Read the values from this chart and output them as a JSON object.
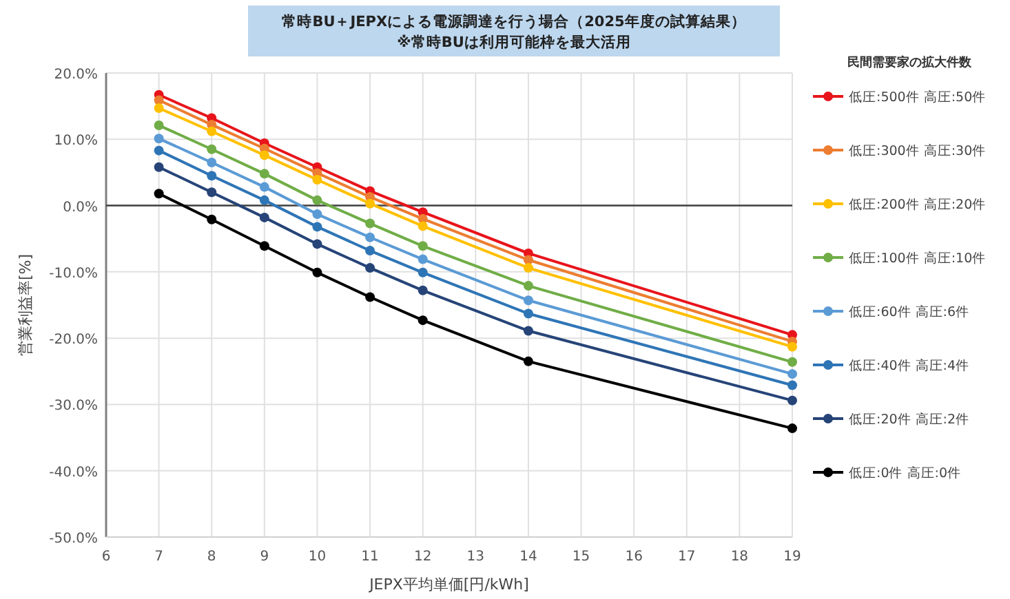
{
  "chart_data": {
    "type": "line",
    "title": "常時BU＋JEPXによる電源調達を行う場合（2025年度の試算結果）",
    "subtitle": "※常時BUは利用可能枠を最大活用",
    "xlabel": "JEPX平均単価[円/kWh]",
    "ylabel": "営業利益率[%]",
    "legend_title": "民間需要家の拡大件数",
    "x": [
      7,
      8,
      9,
      10,
      11,
      12,
      14,
      19
    ],
    "series": [
      {
        "name": "低圧:500件 高圧:50件",
        "color": "#e8141b",
        "values": [
          16.7,
          13.2,
          9.4,
          5.8,
          2.2,
          -1.0,
          -7.2,
          -19.5
        ]
      },
      {
        "name": "低圧:300件 高圧:30件",
        "color": "#ed7d31",
        "values": [
          15.9,
          12.2,
          8.6,
          4.9,
          1.3,
          -2.0,
          -8.2,
          -20.5
        ]
      },
      {
        "name": "低圧:200件 高圧:20件",
        "color": "#ffc000",
        "values": [
          14.7,
          11.2,
          7.6,
          3.9,
          0.3,
          -3.1,
          -9.4,
          -21.3
        ]
      },
      {
        "name": "低圧:100件 高圧:10件",
        "color": "#70ad47",
        "values": [
          12.1,
          8.5,
          4.8,
          0.8,
          -2.7,
          -6.1,
          -12.1,
          -23.6
        ]
      },
      {
        "name": "低圧:60件 高圧:6件",
        "color": "#5b9bd5",
        "values": [
          10.1,
          6.5,
          2.8,
          -1.3,
          -4.8,
          -8.1,
          -14.3,
          -25.4
        ]
      },
      {
        "name": "低圧:40件 高圧:4件",
        "color": "#2e75b6",
        "values": [
          8.3,
          4.5,
          0.8,
          -3.2,
          -6.8,
          -10.1,
          -16.3,
          -27.1
        ]
      },
      {
        "name": "低圧:20件 高圧:2件",
        "color": "#264478",
        "values": [
          5.8,
          2.0,
          -1.8,
          -5.8,
          -9.4,
          -12.8,
          -18.9,
          -29.4
        ]
      },
      {
        "name": "低圧:0件 高圧:0件",
        "color": "#000000",
        "values": [
          1.8,
          -2.1,
          -6.1,
          -10.1,
          -13.8,
          -17.3,
          -23.5,
          -33.6
        ]
      }
    ],
    "xlim": [
      6,
      19
    ],
    "xticks": [
      6,
      7,
      8,
      9,
      10,
      11,
      12,
      13,
      14,
      15,
      16,
      17,
      18,
      19
    ],
    "ylim": [
      -50,
      20
    ],
    "yticks": [
      {
        "value": -50,
        "label": "-50.0%"
      },
      {
        "value": -40,
        "label": "-40.0%"
      },
      {
        "value": -30,
        "label": "-30.0%"
      },
      {
        "value": -20,
        "label": "-20.0%"
      },
      {
        "value": -10,
        "label": "-10.0%"
      },
      {
        "value": 0,
        "label": "0.0%"
      },
      {
        "value": 10,
        "label": "10.0%"
      },
      {
        "value": 20,
        "label": "20.0%"
      }
    ],
    "ref_lines": [
      {
        "axis": "y",
        "value": 0,
        "color": "#404040"
      }
    ],
    "grid": true,
    "legend": "right",
    "marker": "circle",
    "line_style": "solid"
  }
}
